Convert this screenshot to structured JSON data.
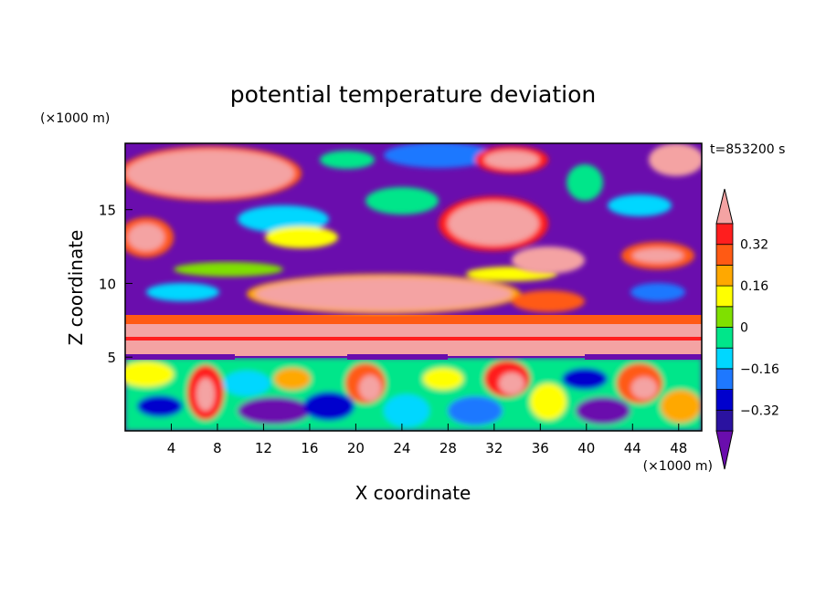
{
  "chart_data": {
    "type": "heatmap",
    "title": "potential temperature deviation",
    "xlabel": "X coordinate",
    "ylabel": "Z coordinate",
    "x_unit": "(×1000 m)",
    "y_unit": "(×1000 m)",
    "time_label": "t=853200 s",
    "xlim": [
      0,
      50
    ],
    "ylim": [
      0,
      19.5
    ],
    "x_ticks": [
      4,
      8,
      12,
      16,
      20,
      24,
      28,
      32,
      36,
      40,
      44,
      48
    ],
    "y_ticks": [
      5,
      10,
      15
    ],
    "colorbar": {
      "levels": [
        -0.4,
        -0.32,
        -0.24,
        -0.16,
        -0.08,
        0,
        0.08,
        0.16,
        0.24,
        0.32,
        0.4
      ],
      "tick_labels": [
        "0.32",
        "0.16",
        "0",
        "−0.16",
        "−0.32"
      ],
      "tick_values": [
        0.32,
        0.16,
        0,
        -0.16,
        -0.32
      ],
      "colors": [
        "#6a0dad",
        "#2a12a0",
        "#0000cd",
        "#1e78ff",
        "#00d7ff",
        "#00e68a",
        "#7fe000",
        "#ffff00",
        "#ffa800",
        "#ff5a14",
        "#ff1e1e",
        "#f4a3a3"
      ],
      "extend": "both"
    }
  }
}
